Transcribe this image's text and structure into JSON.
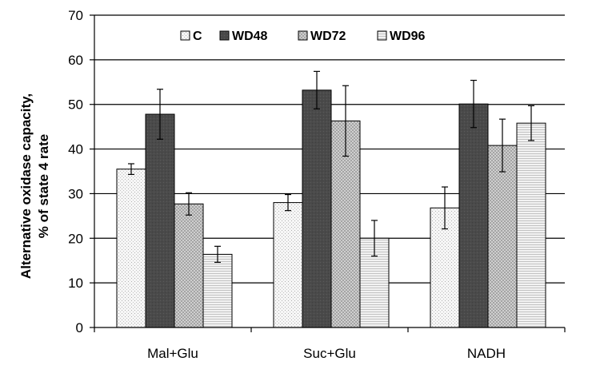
{
  "chart_data": {
    "type": "bar",
    "title": "",
    "xlabel": "",
    "ylabel_line1": "Alternative oxidase capacity,",
    "ylabel_line2": "% of state 4 rate",
    "ylim": [
      0,
      70
    ],
    "yticks": [
      0,
      10,
      20,
      30,
      40,
      50,
      60,
      70
    ],
    "ytick_labels": [
      "0",
      "10",
      "20",
      "30",
      "40",
      "50",
      "60",
      "70"
    ],
    "grid": true,
    "legend_position": "top",
    "categories": [
      "Mal+Glu",
      "Suc+Glu",
      "NADH"
    ],
    "series": [
      {
        "name": "C",
        "pattern": "light-dots",
        "values": [
          35.5,
          28.0,
          26.8
        ],
        "errors": [
          1.2,
          1.8,
          4.7
        ]
      },
      {
        "name": "WD48",
        "pattern": "dark",
        "values": [
          47.8,
          53.2,
          50.1
        ],
        "errors": [
          5.6,
          4.2,
          5.3
        ]
      },
      {
        "name": "WD72",
        "pattern": "checker",
        "values": [
          27.7,
          46.3,
          40.8
        ],
        "errors": [
          2.5,
          7.9,
          5.9
        ]
      },
      {
        "name": "WD96",
        "pattern": "hlines",
        "values": [
          16.4,
          20.0,
          45.8
        ],
        "errors": [
          1.8,
          4.0,
          3.9
        ]
      }
    ]
  }
}
